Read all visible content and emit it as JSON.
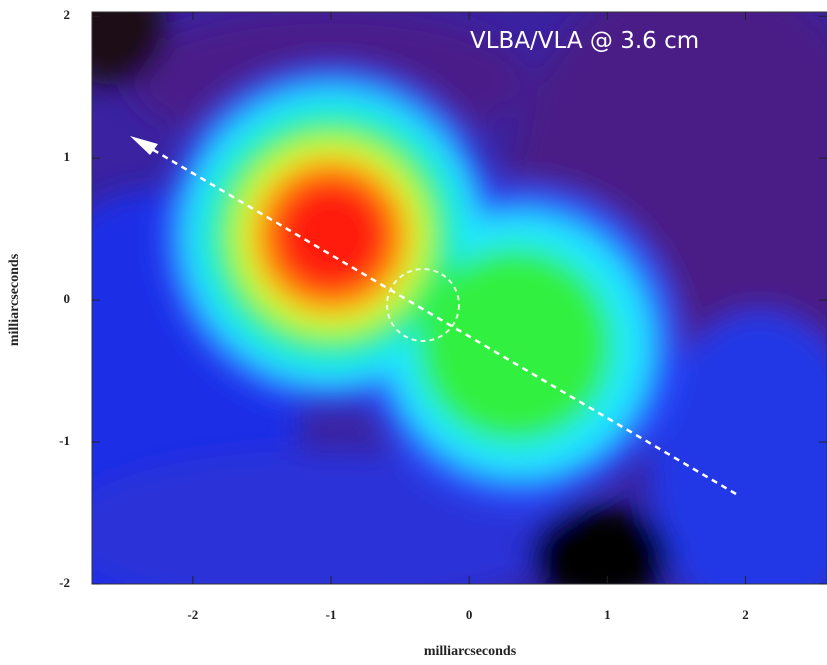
{
  "chart_data": {
    "type": "image",
    "annotation": "VLBA/VLA @ 3.6 cm",
    "x_label": "milliarcseconds",
    "y_label": "milliarcseconds",
    "xlim": [
      -2.73,
      2.59
    ],
    "ylim": [
      -2.0,
      2.03
    ],
    "xticks": [
      -2,
      -1,
      0,
      1,
      2
    ],
    "yticks": [
      -2,
      -1,
      0,
      1,
      2
    ]
  }
}
